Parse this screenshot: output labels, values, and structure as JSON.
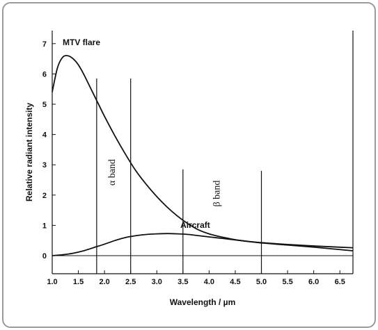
{
  "chart_data": {
    "type": "line",
    "xlabel": "Wavelength / µm",
    "ylabel": "Relative radiant intensity",
    "xlim": [
      1.0,
      6.75
    ],
    "ylim": [
      -0.35,
      7.5
    ],
    "x_ticks": [
      "1.0",
      "1.5",
      "2.0",
      "2.5",
      "3.0",
      "3.5",
      "4.0",
      "4.5",
      "5.0",
      "5.5",
      "6.0",
      "6.5"
    ],
    "y_ticks": [
      "0",
      "1",
      "2",
      "3",
      "4",
      "5",
      "6",
      "7"
    ],
    "grid": false,
    "series": [
      {
        "name": "MTV flare",
        "x": [
          1.0,
          1.1,
          1.2,
          1.3,
          1.4,
          1.5,
          1.6,
          1.7,
          1.8,
          1.9,
          2.0,
          2.2,
          2.4,
          2.6,
          2.8,
          3.0,
          3.2,
          3.4,
          3.6,
          3.8,
          4.0,
          4.2,
          4.4,
          4.6,
          4.8,
          5.0,
          5.5,
          6.0,
          6.5,
          6.75
        ],
        "y": [
          5.4,
          6.2,
          6.55,
          6.6,
          6.5,
          6.3,
          6.0,
          5.65,
          5.3,
          4.95,
          4.6,
          3.95,
          3.35,
          2.8,
          2.35,
          1.95,
          1.6,
          1.3,
          1.05,
          0.85,
          0.72,
          0.63,
          0.56,
          0.5,
          0.46,
          0.42,
          0.35,
          0.28,
          0.2,
          0.16
        ]
      },
      {
        "name": "Aircraft",
        "x": [
          1.0,
          1.2,
          1.4,
          1.6,
          1.8,
          2.0,
          2.2,
          2.4,
          2.6,
          2.8,
          3.0,
          3.2,
          3.4,
          3.6,
          3.8,
          4.0,
          4.2,
          4.4,
          4.6,
          4.8,
          5.0,
          5.5,
          6.0,
          6.5,
          6.75
        ],
        "y": [
          0.0,
          0.03,
          0.08,
          0.16,
          0.27,
          0.38,
          0.5,
          0.6,
          0.66,
          0.7,
          0.72,
          0.73,
          0.72,
          0.7,
          0.66,
          0.62,
          0.58,
          0.54,
          0.5,
          0.46,
          0.43,
          0.37,
          0.32,
          0.28,
          0.26
        ]
      }
    ],
    "vertical_lines": [
      {
        "x": 1.85,
        "y_top": 5.85
      },
      {
        "x": 2.5,
        "y_top": 5.85
      },
      {
        "x": 3.5,
        "y_top": 2.85
      },
      {
        "x": 5.0,
        "y_top": 2.8
      }
    ],
    "annotations": [
      {
        "text": "MTV flare",
        "x": 1.2,
        "y": 6.95,
        "weight": "bold",
        "rotate": 0
      },
      {
        "text": "Aircraft",
        "x": 3.45,
        "y": 0.92,
        "weight": "bold",
        "rotate": 0
      },
      {
        "text": "α band",
        "x": 2.2,
        "y": 2.75,
        "weight": "normal",
        "rotate": -90
      },
      {
        "text": "β band",
        "x": 4.2,
        "y": 2.05,
        "weight": "normal",
        "rotate": -90
      }
    ]
  }
}
